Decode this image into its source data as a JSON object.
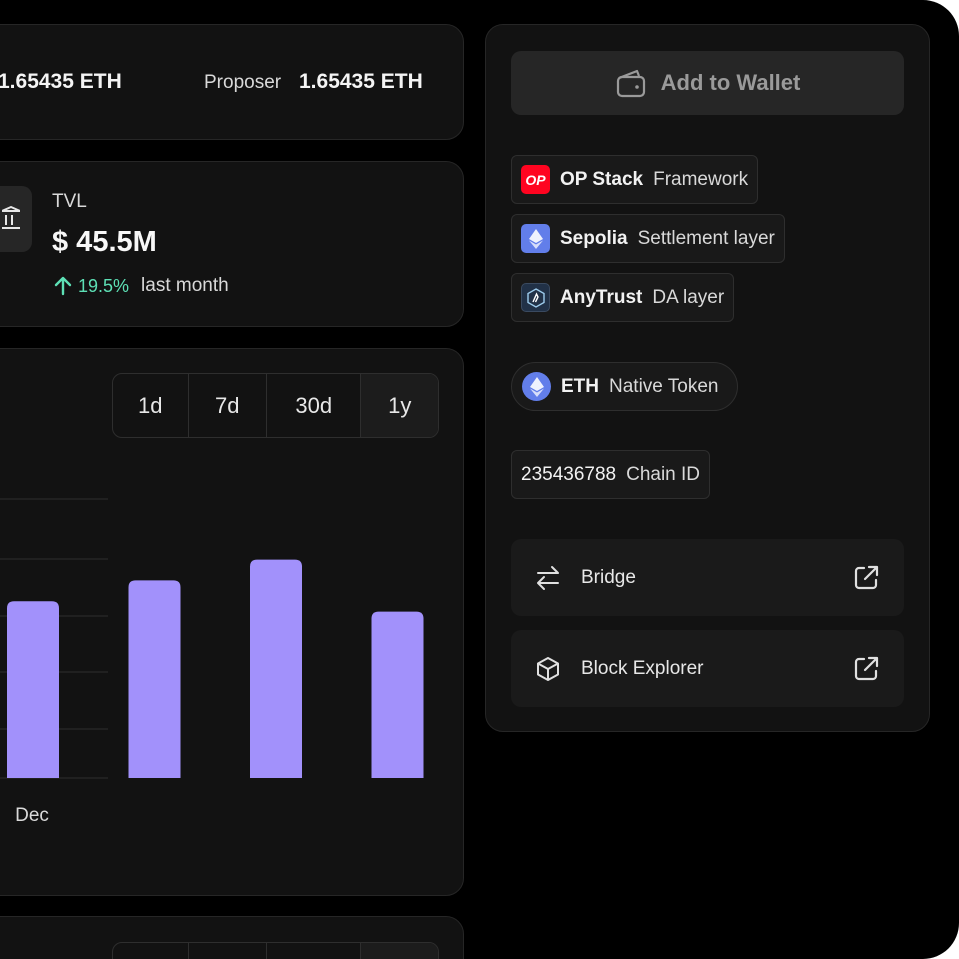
{
  "stake": {
    "left_amount": "1.65435 ETH",
    "proposer_label": "Proposer",
    "proposer_amount": "1.65435 ETH"
  },
  "tvl": {
    "label": "TVL",
    "value": "$ 45.5M",
    "change_value": "19.5%",
    "change_period": "last month",
    "change_color": "#5de0b5",
    "icon": "bank-icon"
  },
  "chart": {
    "ranges": [
      "1d",
      "7d",
      "30d",
      "1y"
    ],
    "selected_range": "1y"
  },
  "chart_data": {
    "type": "bar",
    "categories": [
      "Dec",
      "",
      "",
      ""
    ],
    "values": [
      85,
      95,
      105,
      80
    ],
    "bar_color": "#a291fb"
  },
  "panel": {
    "wallet_button": "Add to Wallet",
    "wallet_icon": "wallet-icon",
    "framework": {
      "name": "OP Stack",
      "desc": "Framework",
      "logo_text": "OP"
    },
    "settlement": {
      "name": "Sepolia",
      "desc": "Settlement layer"
    },
    "da": {
      "name": "AnyTrust",
      "desc": "DA layer"
    },
    "native_token": {
      "name": "ETH",
      "desc": "Native Token"
    },
    "chain": {
      "id": "235436788",
      "label": "Chain ID"
    },
    "links": [
      {
        "label": "Bridge",
        "icon": "swap-arrows-icon"
      },
      {
        "label": "Block Explorer",
        "icon": "cube-icon"
      }
    ]
  }
}
